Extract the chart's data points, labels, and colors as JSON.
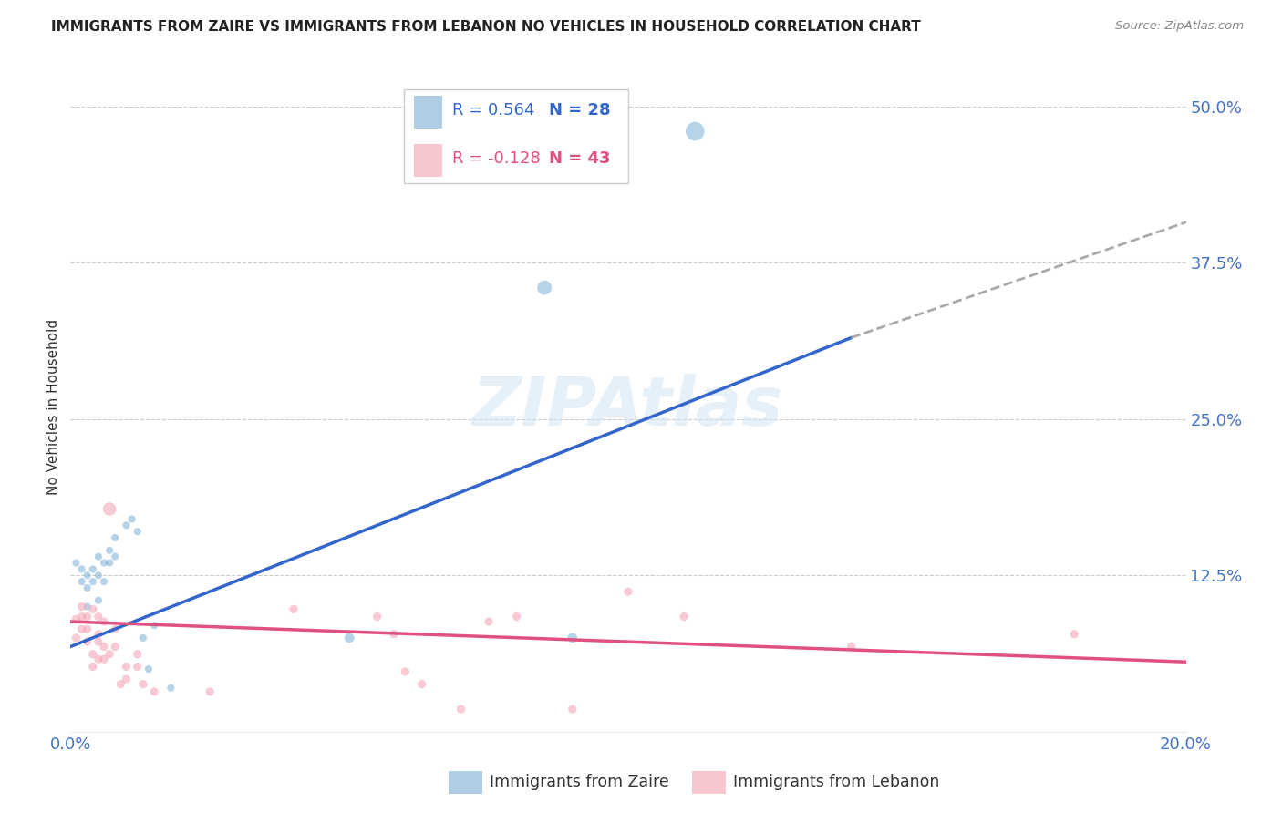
{
  "title": "IMMIGRANTS FROM ZAIRE VS IMMIGRANTS FROM LEBANON NO VEHICLES IN HOUSEHOLD CORRELATION CHART",
  "source": "Source: ZipAtlas.com",
  "ylabel": "No Vehicles in Household",
  "xlim": [
    0.0,
    0.2
  ],
  "ylim": [
    0.0,
    0.52
  ],
  "xticks": [
    0.0,
    0.05,
    0.1,
    0.15,
    0.2
  ],
  "xtick_labels": [
    "0.0%",
    "",
    "",
    "",
    "20.0%"
  ],
  "yticks": [
    0.0,
    0.125,
    0.25,
    0.375,
    0.5
  ],
  "ytick_labels": [
    "",
    "12.5%",
    "25.0%",
    "37.5%",
    "50.0%"
  ],
  "ytick_color": "#4472c4",
  "xtick_color": "#4472c4",
  "legend_r_zaire": "R = 0.564",
  "legend_n_zaire": "N = 28",
  "legend_r_lebanon": "R = -0.128",
  "legend_n_lebanon": "N = 43",
  "zaire_color": "#7bafd4",
  "lebanon_color": "#f4a0b0",
  "zaire_line_color": "#3366cc",
  "lebanon_line_color": "#e05080",
  "watermark": "ZIPAtlas",
  "zaire_points": [
    [
      0.001,
      0.135
    ],
    [
      0.002,
      0.12
    ],
    [
      0.002,
      0.13
    ],
    [
      0.003,
      0.115
    ],
    [
      0.003,
      0.125
    ],
    [
      0.003,
      0.1
    ],
    [
      0.004,
      0.13
    ],
    [
      0.004,
      0.12
    ],
    [
      0.005,
      0.14
    ],
    [
      0.005,
      0.105
    ],
    [
      0.005,
      0.125
    ],
    [
      0.006,
      0.135
    ],
    [
      0.006,
      0.12
    ],
    [
      0.007,
      0.145
    ],
    [
      0.007,
      0.135
    ],
    [
      0.008,
      0.155
    ],
    [
      0.008,
      0.14
    ],
    [
      0.01,
      0.165
    ],
    [
      0.011,
      0.17
    ],
    [
      0.012,
      0.16
    ],
    [
      0.013,
      0.075
    ],
    [
      0.014,
      0.05
    ],
    [
      0.015,
      0.085
    ],
    [
      0.018,
      0.035
    ],
    [
      0.05,
      0.075
    ],
    [
      0.085,
      0.355
    ],
    [
      0.09,
      0.075
    ],
    [
      0.112,
      0.48
    ]
  ],
  "lebanon_points": [
    [
      0.001,
      0.09
    ],
    [
      0.001,
      0.075
    ],
    [
      0.002,
      0.1
    ],
    [
      0.002,
      0.092
    ],
    [
      0.002,
      0.082
    ],
    [
      0.003,
      0.092
    ],
    [
      0.003,
      0.082
    ],
    [
      0.003,
      0.072
    ],
    [
      0.004,
      0.098
    ],
    [
      0.004,
      0.062
    ],
    [
      0.004,
      0.052
    ],
    [
      0.005,
      0.092
    ],
    [
      0.005,
      0.078
    ],
    [
      0.005,
      0.072
    ],
    [
      0.005,
      0.058
    ],
    [
      0.006,
      0.088
    ],
    [
      0.006,
      0.068
    ],
    [
      0.006,
      0.058
    ],
    [
      0.007,
      0.062
    ],
    [
      0.007,
      0.178
    ],
    [
      0.008,
      0.082
    ],
    [
      0.008,
      0.068
    ],
    [
      0.009,
      0.038
    ],
    [
      0.01,
      0.052
    ],
    [
      0.01,
      0.042
    ],
    [
      0.012,
      0.062
    ],
    [
      0.012,
      0.052
    ],
    [
      0.013,
      0.038
    ],
    [
      0.015,
      0.032
    ],
    [
      0.025,
      0.032
    ],
    [
      0.04,
      0.098
    ],
    [
      0.055,
      0.092
    ],
    [
      0.058,
      0.078
    ],
    [
      0.06,
      0.048
    ],
    [
      0.063,
      0.038
    ],
    [
      0.07,
      0.018
    ],
    [
      0.075,
      0.088
    ],
    [
      0.08,
      0.092
    ],
    [
      0.09,
      0.018
    ],
    [
      0.1,
      0.112
    ],
    [
      0.11,
      0.092
    ],
    [
      0.14,
      0.068
    ],
    [
      0.18,
      0.078
    ]
  ],
  "zaire_sizes": [
    35,
    35,
    35,
    35,
    35,
    35,
    35,
    35,
    35,
    35,
    35,
    35,
    35,
    35,
    35,
    35,
    35,
    35,
    35,
    35,
    35,
    35,
    35,
    35,
    60,
    130,
    60,
    220
  ],
  "lebanon_sizes": [
    45,
    45,
    45,
    45,
    45,
    45,
    45,
    45,
    45,
    45,
    45,
    45,
    45,
    45,
    45,
    45,
    45,
    45,
    45,
    110,
    45,
    45,
    45,
    45,
    45,
    45,
    45,
    45,
    45,
    45,
    45,
    45,
    45,
    45,
    45,
    45,
    45,
    45,
    45,
    45,
    45,
    45,
    45
  ],
  "zaire_trendline_solid": [
    [
      0.0,
      0.068
    ],
    [
      0.14,
      0.315
    ]
  ],
  "zaire_trendline_dashed": [
    [
      0.14,
      0.315
    ],
    [
      0.205,
      0.415
    ]
  ],
  "lebanon_trendline": [
    [
      0.0,
      0.088
    ],
    [
      0.205,
      0.055
    ]
  ]
}
